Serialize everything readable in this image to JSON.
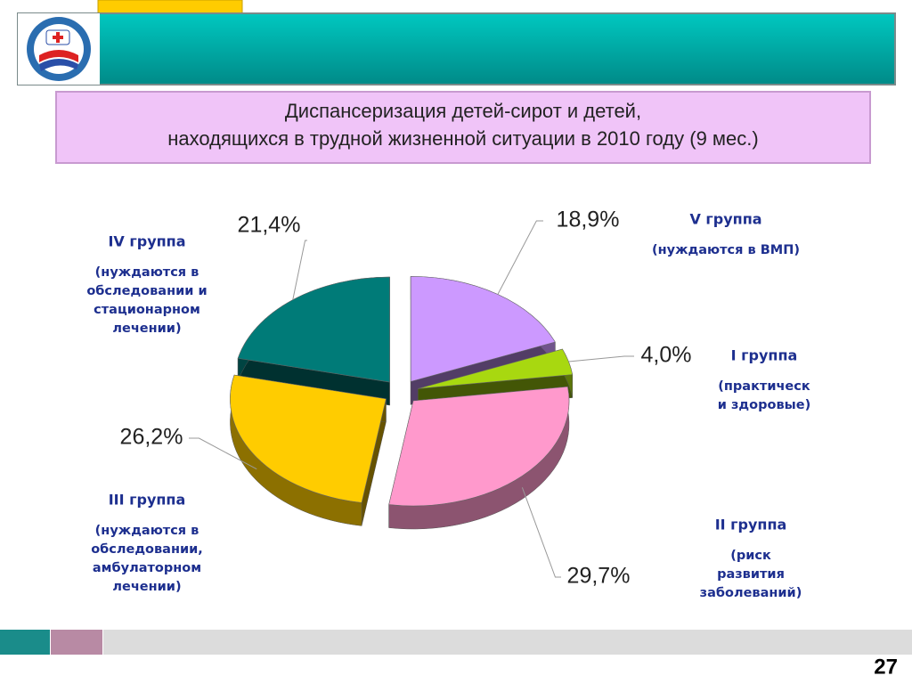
{
  "chart_data": {
    "type": "pie",
    "title": [
      "Диспансеризация детей-сирот и детей,",
      "находящихся в трудной жизненной ситуации в 2010 году (9 мес.)"
    ],
    "categories": [
      "V  группа",
      "I группа",
      "II  группа",
      "III  группа",
      "IV  группа"
    ],
    "descriptions": [
      [
        "(нуждаются в ВМП)"
      ],
      [
        "(практическ",
        "и здоровые)"
      ],
      [
        "(риск",
        "развития",
        "заболеваний)"
      ],
      [
        "(нуждаются в",
        "обследовании,",
        "амбулаторном",
        "лечении)"
      ],
      [
        "(нуждаются в",
        "обследовании и",
        "стационарном",
        "лечении)"
      ]
    ],
    "values": [
      18.9,
      4.0,
      29.7,
      26.2,
      21.4
    ],
    "value_labels": [
      "18,9%",
      "4,0%",
      "29,7%",
      "26,2%",
      "21,4%"
    ],
    "colors": [
      "#cc99ff",
      "#a8d810",
      "#ff99cc",
      "#ffcc00",
      "#007b78"
    ]
  },
  "page_number": 27
}
